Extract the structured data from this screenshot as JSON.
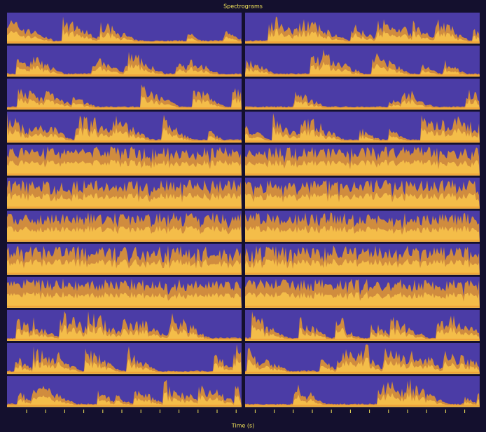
{
  "title": "Spectrograms",
  "x_label": "Time (s)"
}
